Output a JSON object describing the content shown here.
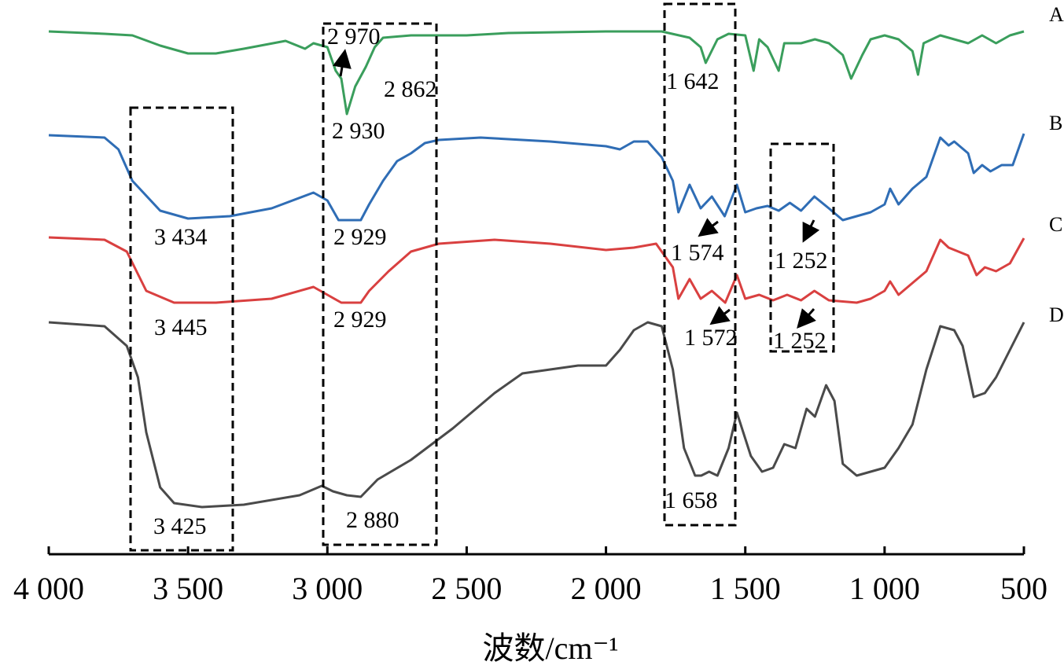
{
  "chart_data": {
    "type": "line",
    "title": "",
    "xlabel": "波数/cm⁻¹",
    "ylabel": "",
    "xlim": [
      4000,
      500
    ],
    "ylim": [
      0,
      150
    ],
    "y_units": "relative transmittance (a.u., curves vertically offset)",
    "grid": false,
    "x_ticks": [
      4000,
      3500,
      3000,
      2500,
      2000,
      1500,
      1000,
      500
    ],
    "x_tick_labels": [
      "4 000",
      "3 500",
      "3 000",
      "2 500",
      "2 000",
      "1 500",
      "1 000",
      "500"
    ],
    "series": [
      {
        "name": "A",
        "color": "#3a9e5c",
        "x": [
          4000,
          3800,
          3700,
          3600,
          3500,
          3400,
          3300,
          3150,
          3080,
          3050,
          3000,
          2970,
          2950,
          2930,
          2900,
          2862,
          2830,
          2800,
          2700,
          2500,
          2350,
          2000,
          1800,
          1700,
          1660,
          1642,
          1600,
          1560,
          1500,
          1470,
          1450,
          1420,
          1380,
          1360,
          1300,
          1250,
          1200,
          1150,
          1120,
          1080,
          1050,
          1000,
          950,
          900,
          880,
          860,
          800,
          700,
          650,
          600,
          550,
          500
        ],
        "y": [
          142,
          141.4,
          141,
          138.4,
          136.4,
          136.4,
          137.6,
          139.6,
          137.6,
          139,
          138,
          132,
          130,
          121,
          128,
          133,
          138,
          140.4,
          141,
          141,
          141.6,
          142,
          142,
          140.4,
          138,
          134,
          140,
          141.4,
          141,
          132,
          140,
          138,
          132,
          139,
          139,
          140,
          139,
          136,
          130,
          136,
          140,
          141,
          140,
          137,
          131,
          139,
          141,
          139,
          141,
          139,
          141,
          142
        ]
      },
      {
        "name": "B",
        "color": "#2f6db5",
        "x": [
          4000,
          3800,
          3750,
          3700,
          3600,
          3500,
          3350,
          3200,
          3050,
          3000,
          2960,
          2880,
          2850,
          2800,
          2750,
          2700,
          2650,
          2600,
          2450,
          2200,
          2000,
          1950,
          1900,
          1850,
          1800,
          1760,
          1740,
          1700,
          1660,
          1620,
          1574,
          1530,
          1500,
          1460,
          1420,
          1380,
          1340,
          1300,
          1252,
          1200,
          1150,
          1100,
          1050,
          1000,
          980,
          950,
          900,
          850,
          800,
          770,
          750,
          700,
          680,
          650,
          620,
          580,
          540,
          500
        ],
        "y": [
          115.6,
          115,
          112,
          104,
          96.4,
          94.4,
          95,
          97,
          101,
          99,
          94,
          94,
          98,
          104,
          109,
          111,
          113.6,
          114.4,
          115,
          114,
          112.8,
          112,
          114,
          114,
          110,
          104,
          96,
          103,
          97,
          100,
          95,
          103,
          96,
          97,
          97.6,
          96.4,
          98.4,
          96.4,
          100,
          97,
          94,
          95,
          96,
          98,
          102,
          98,
          102,
          105,
          115,
          113,
          114,
          111,
          106,
          108,
          106.4,
          108,
          108,
          116
        ]
      },
      {
        "name": "C",
        "color": "#d94040",
        "x": [
          4000,
          3800,
          3720,
          3650,
          3550,
          3400,
          3200,
          3050,
          3000,
          2950,
          2880,
          2850,
          2780,
          2700,
          2600,
          2400,
          2200,
          2000,
          1900,
          1820,
          1760,
          1740,
          1700,
          1660,
          1620,
          1572,
          1530,
          1500,
          1450,
          1400,
          1350,
          1300,
          1252,
          1200,
          1100,
          1050,
          1000,
          980,
          950,
          900,
          850,
          800,
          770,
          700,
          670,
          640,
          600,
          550,
          500
        ],
        "y": [
          89.6,
          89,
          86,
          76,
          73,
          73,
          74,
          77,
          75,
          73,
          73,
          76,
          81,
          86,
          88,
          89,
          88,
          86.4,
          87,
          88,
          82,
          74,
          79,
          74,
          76,
          73,
          80,
          74,
          75,
          73.6,
          75,
          73.6,
          76,
          73.6,
          73,
          74,
          76,
          78.4,
          75,
          78,
          81,
          89,
          87,
          85,
          80,
          82,
          81,
          83,
          89.4
        ]
      },
      {
        "name": "D",
        "color": "#4a4a4a",
        "x": [
          4000,
          3800,
          3720,
          3680,
          3650,
          3600,
          3550,
          3450,
          3300,
          3100,
          3020,
          2980,
          2930,
          2880,
          2820,
          2700,
          2550,
          2400,
          2300,
          2200,
          2100,
          2000,
          1950,
          1900,
          1850,
          1800,
          1760,
          1720,
          1680,
          1658,
          1630,
          1600,
          1560,
          1530,
          1480,
          1440,
          1400,
          1360,
          1320,
          1280,
          1250,
          1210,
          1180,
          1150,
          1100,
          1050,
          1000,
          950,
          900,
          850,
          800,
          750,
          720,
          680,
          640,
          600,
          550,
          500
        ],
        "y": [
          68,
          67,
          62,
          54,
          40,
          26,
          22,
          21,
          21.6,
          24,
          26.4,
          25,
          24,
          23.6,
          28,
          33,
          41,
          50,
          55,
          56,
          57,
          57,
          61,
          66,
          68,
          67,
          56,
          36,
          29,
          29,
          30,
          29,
          36,
          45,
          34,
          30,
          31,
          37,
          36,
          46,
          44,
          52,
          48,
          32,
          29,
          30,
          31,
          36,
          42,
          56,
          67,
          66,
          62,
          49,
          50,
          54,
          61,
          68
        ]
      }
    ],
    "annotations": [
      {
        "text": "2 970",
        "series": "A"
      },
      {
        "text": "2 862",
        "series": "A"
      },
      {
        "text": "2 930",
        "series": "A"
      },
      {
        "text": "1 642",
        "series": "A"
      },
      {
        "text": "3 434",
        "series": "B"
      },
      {
        "text": "2 929",
        "series": "B"
      },
      {
        "text": "1 574",
        "series": "B"
      },
      {
        "text": "1 252",
        "series": "B"
      },
      {
        "text": "3 445",
        "series": "C"
      },
      {
        "text": "2 929",
        "series": "C"
      },
      {
        "text": "1 572",
        "series": "C"
      },
      {
        "text": "1 252",
        "series": "C"
      },
      {
        "text": "3 425",
        "series": "D"
      },
      {
        "text": "2 880",
        "series": "D"
      },
      {
        "text": "1 658",
        "series": "D"
      }
    ]
  }
}
